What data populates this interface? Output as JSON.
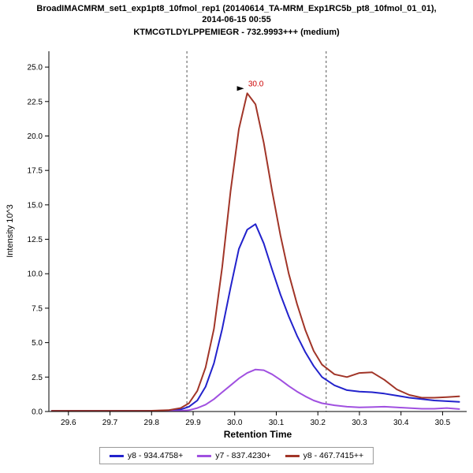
{
  "header": {
    "title_line1": "BroadIMACMRM_set1_exp1pt8_10fmol_rep1 (20140614_TA-MRM_Exp1RC5b_pt8_10fmol_01_01),",
    "title_line2": "2014-06-15 00:55",
    "subtitle": "KTMCGTLDYLPPEMIEGR - 732.9993+++ (medium)"
  },
  "chart_data": {
    "type": "line",
    "title": "KTMCGTLDYLPPEMIEGR - 732.9993+++ (medium)",
    "xlabel": "Retention Time",
    "ylabel": "Intensity 10^3",
    "xlim": [
      29.553,
      30.558
    ],
    "ylim": [
      0,
      26.15
    ],
    "x_ticks": [
      29.6,
      29.7,
      29.8,
      29.9,
      30.0,
      30.1,
      30.2,
      30.3,
      30.4,
      30.5
    ],
    "y_ticks": [
      0.0,
      2.5,
      5.0,
      7.5,
      10.0,
      12.5,
      15.0,
      17.5,
      20.0,
      22.5,
      25.0
    ],
    "boundaries": [
      29.885,
      30.22
    ],
    "boundary_color": "#555555",
    "annotation": {
      "label": "30.0",
      "x": 30.03,
      "y": 23.1,
      "color": "#cc0000"
    },
    "x": [
      29.56,
      29.6,
      29.65,
      29.7,
      29.75,
      29.8,
      29.84,
      29.87,
      29.89,
      29.91,
      29.93,
      29.95,
      29.97,
      29.99,
      30.01,
      30.03,
      30.05,
      30.07,
      30.09,
      30.11,
      30.13,
      30.15,
      30.17,
      30.19,
      30.21,
      30.24,
      30.27,
      30.3,
      30.33,
      30.36,
      30.39,
      30.42,
      30.45,
      30.48,
      30.51,
      30.54
    ],
    "series": [
      {
        "name": "y8 - 934.4758+",
        "color": "#2222cc",
        "values": [
          0.05,
          0.05,
          0.05,
          0.05,
          0.05,
          0.05,
          0.07,
          0.15,
          0.35,
          0.8,
          1.8,
          3.5,
          6.0,
          9.0,
          11.8,
          13.2,
          13.6,
          12.2,
          10.3,
          8.5,
          6.9,
          5.5,
          4.3,
          3.3,
          2.5,
          1.9,
          1.55,
          1.45,
          1.4,
          1.3,
          1.15,
          1.0,
          0.9,
          0.8,
          0.75,
          0.7
        ]
      },
      {
        "name": "y7 - 837.4230+",
        "color": "#a050e0",
        "values": [
          0.03,
          0.03,
          0.03,
          0.03,
          0.03,
          0.03,
          0.04,
          0.05,
          0.1,
          0.25,
          0.5,
          0.9,
          1.4,
          1.9,
          2.4,
          2.8,
          3.05,
          3.0,
          2.7,
          2.3,
          1.85,
          1.45,
          1.1,
          0.8,
          0.6,
          0.45,
          0.35,
          0.3,
          0.32,
          0.35,
          0.3,
          0.25,
          0.2,
          0.2,
          0.25,
          0.18
        ]
      },
      {
        "name": "y8 - 467.7415++",
        "color": "#a13528",
        "values": [
          0.05,
          0.05,
          0.05,
          0.05,
          0.05,
          0.06,
          0.1,
          0.25,
          0.6,
          1.5,
          3.2,
          6.0,
          10.5,
          16.0,
          20.5,
          23.1,
          22.3,
          19.5,
          16.0,
          12.8,
          10.0,
          7.8,
          5.9,
          4.4,
          3.4,
          2.7,
          2.5,
          2.8,
          2.85,
          2.3,
          1.6,
          1.2,
          1.0,
          1.0,
          1.05,
          1.1
        ]
      }
    ]
  }
}
